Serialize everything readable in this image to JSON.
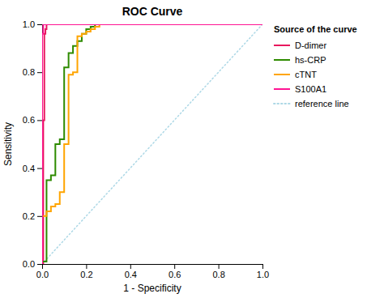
{
  "chart_data": {
    "type": "line",
    "title": "ROC Curve",
    "x_label": "1 - Specificity",
    "y_label": "Sensitivity",
    "legend_title": "Source of the curve",
    "legend": "right",
    "grid": false,
    "xlim": [
      0.0,
      1.0
    ],
    "ylim": [
      0.0,
      1.0
    ],
    "xticks": [
      {
        "value": 0.0,
        "label": "0.0"
      },
      0.2,
      0.4,
      0.6,
      0.8,
      {
        "value": 1.0,
        "label": "1.0"
      }
    ],
    "yticks": [
      {
        "value": 0.0,
        "label": "0.0"
      },
      0.2,
      0.4,
      0.6,
      0.8,
      {
        "value": 1.0,
        "label": "1.0"
      }
    ],
    "series": [
      {
        "name": "D-dimer",
        "color": "#E8175D",
        "x": [
          0.0,
          0.005,
          0.005,
          0.01,
          0.01,
          0.015,
          0.015,
          0.02,
          0.02,
          0.025,
          0.025,
          1.0
        ],
        "values": [
          0.0,
          0.0,
          0.6,
          0.6,
          0.96,
          0.96,
          0.98,
          0.98,
          1.0,
          1.0,
          1.0,
          1.0
        ]
      },
      {
        "name": "hs-CRP",
        "color": "#2E8B00",
        "x": [
          0.0,
          0.0,
          0.02,
          0.02,
          0.04,
          0.04,
          0.06,
          0.06,
          0.08,
          0.08,
          0.1,
          0.1,
          0.12,
          0.12,
          0.14,
          0.14,
          0.16,
          0.16,
          0.18,
          0.18,
          0.2,
          0.2,
          0.22,
          0.22,
          0.24,
          0.24,
          0.26,
          0.26,
          0.28,
          1.0
        ],
        "values": [
          0.0,
          0.01,
          0.01,
          0.35,
          0.35,
          0.37,
          0.37,
          0.5,
          0.5,
          0.52,
          0.52,
          0.82,
          0.82,
          0.88,
          0.88,
          0.91,
          0.91,
          0.93,
          0.93,
          0.96,
          0.96,
          0.98,
          0.98,
          0.99,
          0.99,
          1.0,
          1.0,
          1.0,
          1.0,
          1.0
        ]
      },
      {
        "name": "cTNT",
        "color": "#FFA500",
        "x": [
          0.0,
          0.0,
          0.02,
          0.02,
          0.04,
          0.04,
          0.06,
          0.06,
          0.08,
          0.08,
          0.1,
          0.1,
          0.12,
          0.12,
          0.14,
          0.14,
          0.16,
          0.16,
          0.18,
          0.18,
          0.2,
          0.2,
          0.22,
          0.22,
          0.24,
          0.24,
          0.26,
          0.26,
          0.28,
          0.28,
          0.3,
          0.3,
          0.4,
          1.0
        ],
        "values": [
          0.0,
          0.2,
          0.2,
          0.22,
          0.22,
          0.24,
          0.24,
          0.25,
          0.25,
          0.3,
          0.3,
          0.5,
          0.5,
          0.79,
          0.79,
          0.8,
          0.8,
          0.95,
          0.95,
          0.96,
          0.96,
          0.97,
          0.97,
          0.98,
          0.98,
          0.99,
          0.99,
          1.0,
          1.0,
          1.0,
          1.0,
          1.0,
          1.0,
          1.0
        ]
      },
      {
        "name": "S100A1",
        "color": "#FF1493",
        "x": [
          0.0,
          0.0,
          0.005,
          0.005,
          1.0
        ],
        "values": [
          0.0,
          0.96,
          0.96,
          1.0,
          1.0
        ]
      },
      {
        "name": "reference line",
        "color": "#ADD8E6",
        "line_style": "dotted",
        "x": [
          0,
          1
        ],
        "values": [
          0,
          1
        ]
      }
    ]
  }
}
